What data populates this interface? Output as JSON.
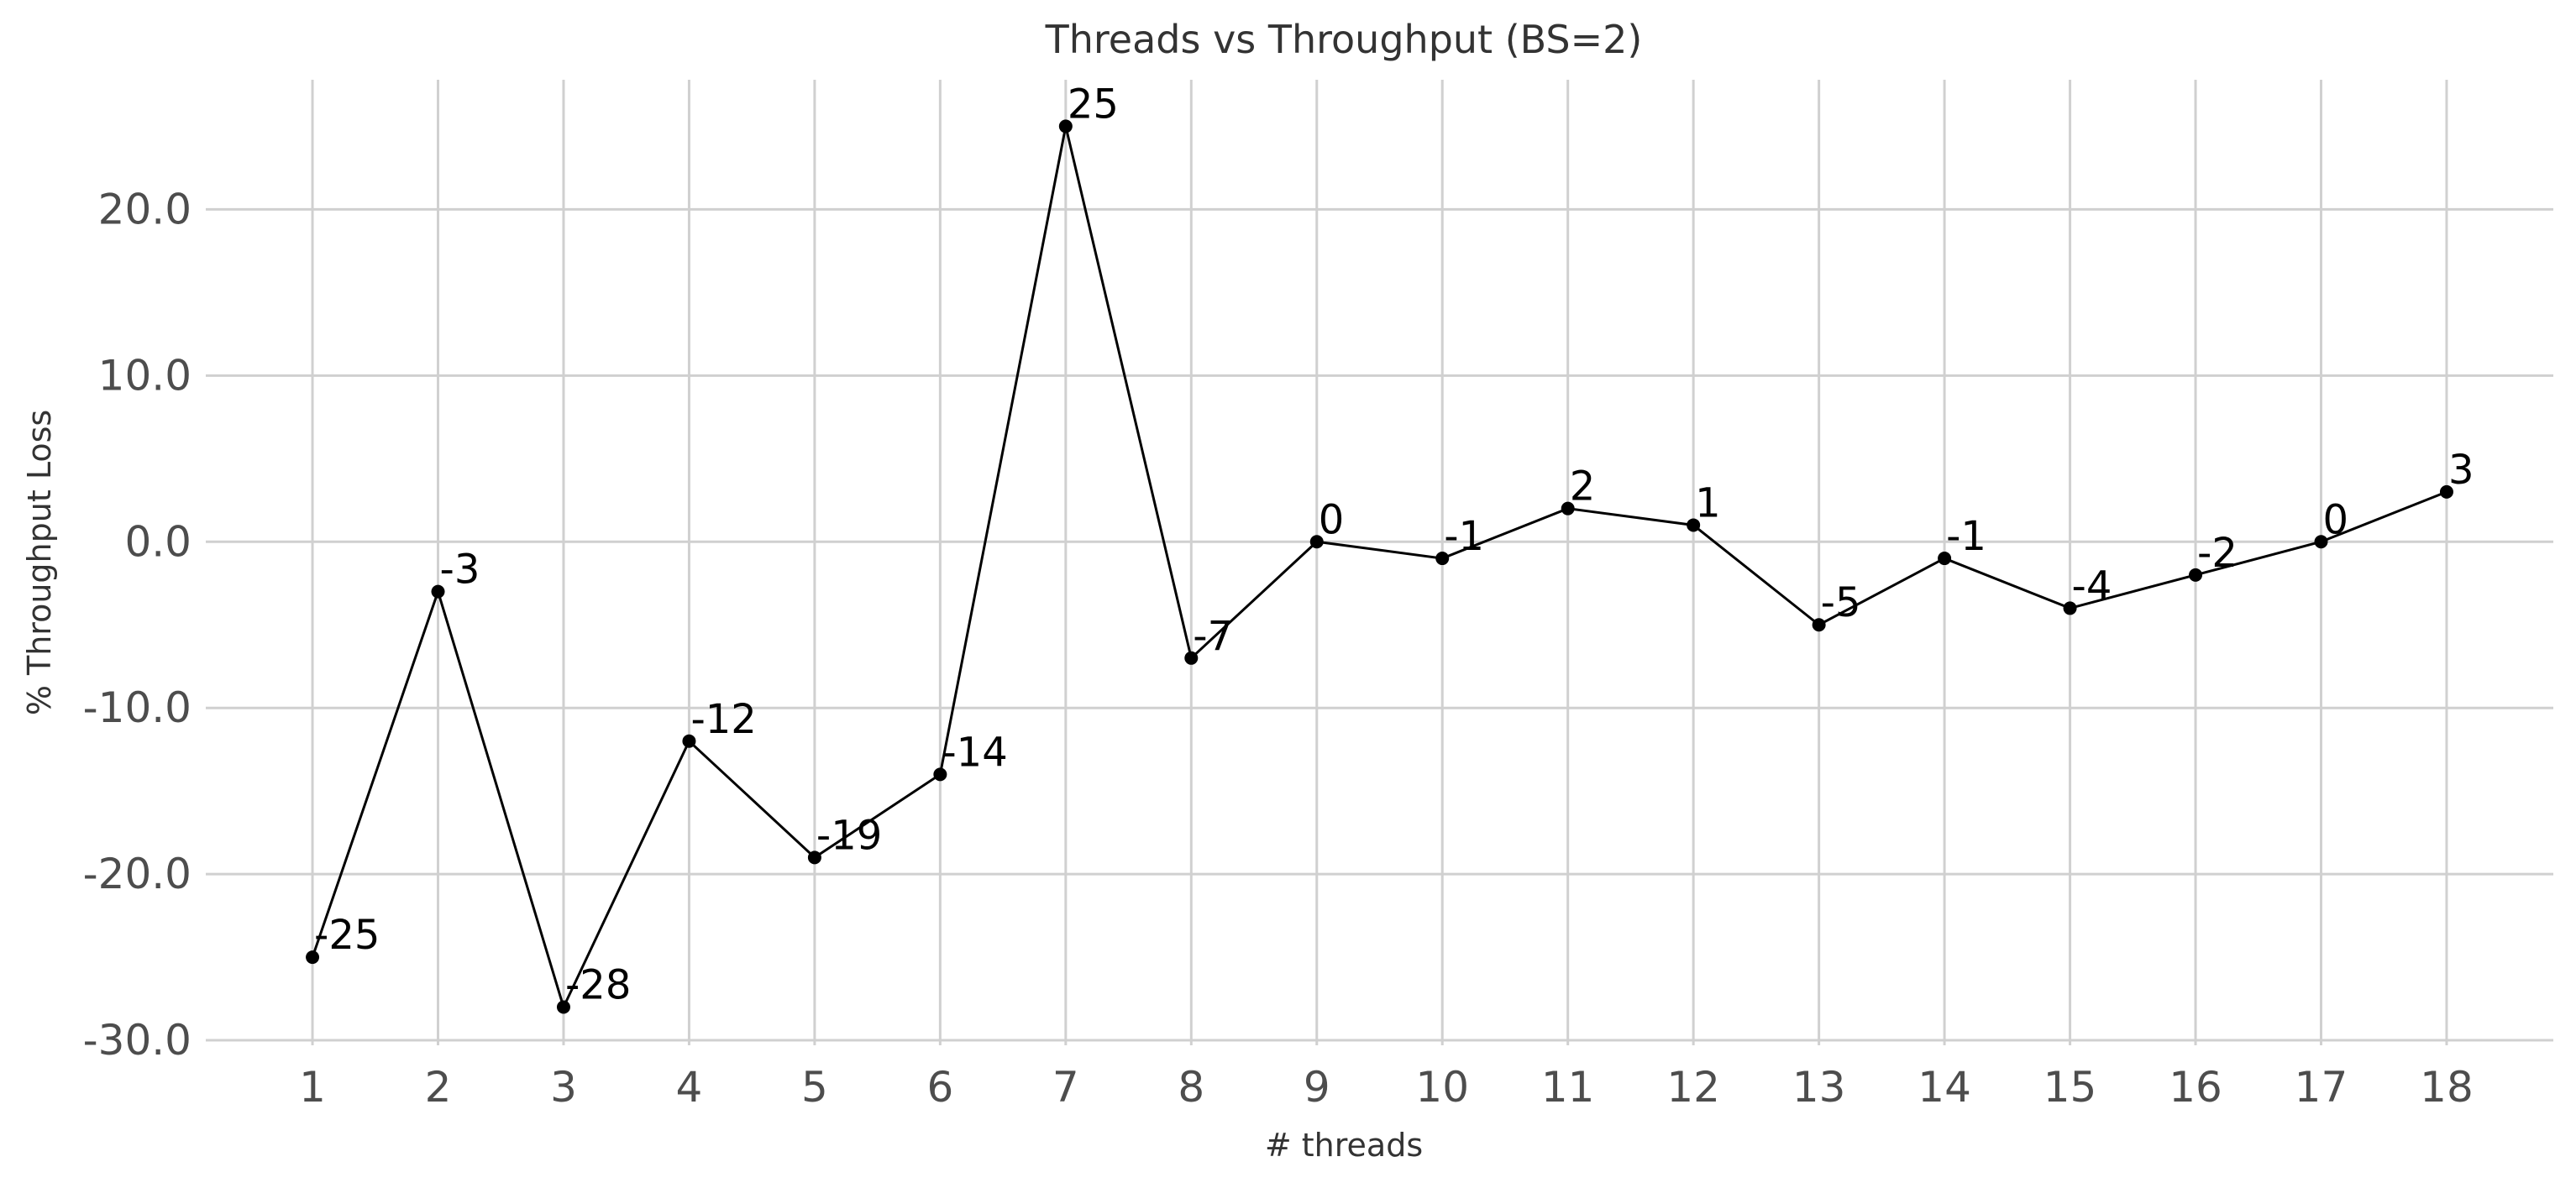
{
  "chart_data": {
    "type": "line",
    "title": "Threads vs Throughput (BS=2)",
    "xlabel": "# threads",
    "ylabel": "% Throughput Loss",
    "x": [
      1,
      2,
      3,
      4,
      5,
      6,
      7,
      8,
      9,
      10,
      11,
      12,
      13,
      14,
      15,
      16,
      17,
      18
    ],
    "x_tick_labels": [
      "1",
      "2",
      "3",
      "4",
      "5",
      "6",
      "7",
      "8",
      "9",
      "10",
      "11",
      "12",
      "13",
      "14",
      "15",
      "16",
      "17",
      "18"
    ],
    "y_ticks": [
      -30,
      -20,
      -10,
      0,
      10,
      20
    ],
    "y_tick_labels": [
      "-30.0",
      "-20.0",
      "-10.0",
      "0.0",
      "10.0",
      "20.0"
    ],
    "series": [
      {
        "values": [
          -25,
          -3,
          -28,
          -12,
          -19,
          -14,
          25,
          -7,
          0,
          -1,
          2,
          1,
          -5,
          -1,
          -4,
          -2,
          0,
          3
        ],
        "data_labels": [
          "-25",
          "-3",
          "-28",
          "-12",
          "-19",
          "-14",
          "25",
          "-7",
          "0",
          "-1",
          "2",
          "1",
          "-5",
          "-1",
          "-4",
          "-2",
          "0",
          "3"
        ],
        "color": "#000000"
      }
    ],
    "xlim": [
      0.15,
      18.85
    ],
    "ylim": [
      -30.3,
      27.8
    ],
    "grid": true,
    "marker": "circle"
  }
}
